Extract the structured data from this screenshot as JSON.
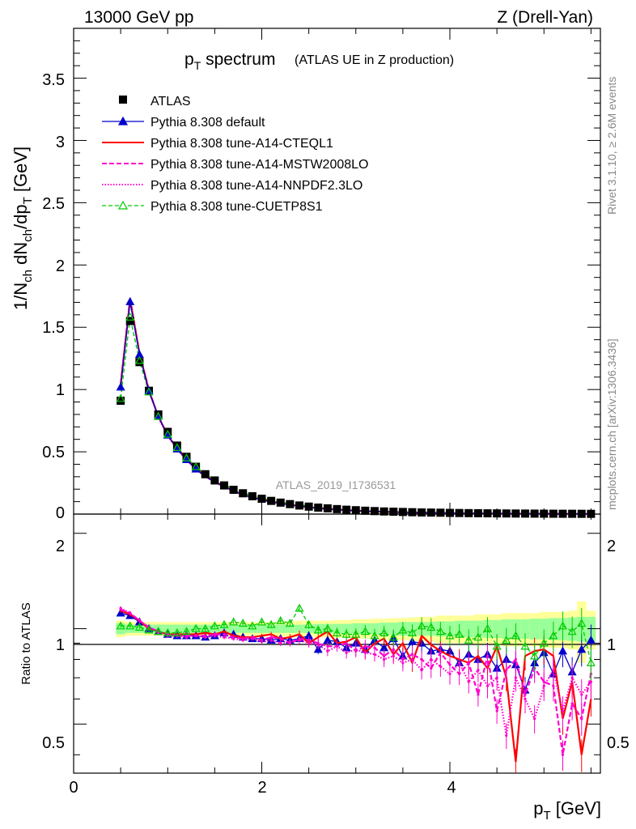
{
  "header": {
    "left": "13000 GeV pp",
    "right": "Z (Drell-Yan)"
  },
  "side": {
    "rivet": "Rivet 3.1.10, ≥ 2.6M events",
    "mcplots": "mcplots.cern.ch [arXiv:1306.3436]"
  },
  "chart_data": {
    "type": "line",
    "title": "p_T spectrum",
    "subtitle": "(ATLAS UE in Z production)",
    "analysis_label": "ATLAS_2019_I1736531",
    "xlabel": "p_T [GeV]",
    "ylabel": "1/N_ch dN_ch/dp_T [GeV]",
    "ratio_ylabel": "Ratio to ATLAS",
    "xlim": [
      0,
      5.6
    ],
    "ylim": [
      0,
      3.9
    ],
    "ratio_ylim": [
      0.35,
      2.3
    ],
    "x_ticks": [
      "0",
      "2",
      "4"
    ],
    "y_ticks": [
      "0",
      "0.5",
      "1",
      "1.5",
      "2",
      "2.5",
      "3",
      "3.5"
    ],
    "ratio_ticks": [
      "0.5",
      "1",
      "2"
    ],
    "legend_position": "top-left",
    "x": [
      0.5,
      0.6,
      0.7,
      0.8,
      0.9,
      1.0,
      1.1,
      1.2,
      1.3,
      1.4,
      1.5,
      1.6,
      1.7,
      1.8,
      1.9,
      2.0,
      2.1,
      2.2,
      2.3,
      2.4,
      2.5,
      2.6,
      2.7,
      2.8,
      2.9,
      3.0,
      3.1,
      3.2,
      3.3,
      3.4,
      3.5,
      3.6,
      3.7,
      3.8,
      3.9,
      4.0,
      4.1,
      4.2,
      4.3,
      4.4,
      4.5,
      4.6,
      4.7,
      4.8,
      4.9,
      5.0,
      5.1,
      5.2,
      5.3,
      5.4,
      5.5
    ],
    "data": {
      "name": "ATLAS",
      "values": [
        0.91,
        1.55,
        1.22,
        0.99,
        0.8,
        0.66,
        0.55,
        0.46,
        0.38,
        0.32,
        0.27,
        0.23,
        0.195,
        0.167,
        0.143,
        0.123,
        0.106,
        0.092,
        0.08,
        0.069,
        0.06,
        0.052,
        0.046,
        0.04,
        0.035,
        0.031,
        0.027,
        0.024,
        0.021,
        0.019,
        0.017,
        0.015,
        0.013,
        0.012,
        0.011,
        0.0095,
        0.0085,
        0.0076,
        0.0068,
        0.0061,
        0.0055,
        0.0049,
        0.0044,
        0.004,
        0.0036,
        0.0032,
        0.0029,
        0.0026,
        0.0024,
        0.0021,
        0.0019
      ],
      "band_inner": [
        0.04,
        0.03,
        0.03,
        0.03,
        0.03,
        0.03,
        0.03,
        0.03,
        0.03,
        0.03,
        0.03,
        0.03,
        0.03,
        0.03,
        0.03,
        0.03,
        0.03,
        0.03,
        0.03,
        0.03,
        0.03,
        0.035,
        0.035,
        0.035,
        0.035,
        0.04,
        0.04,
        0.04,
        0.045,
        0.045,
        0.05,
        0.05,
        0.05,
        0.05,
        0.055,
        0.055,
        0.06,
        0.06,
        0.06,
        0.065,
        0.065,
        0.07,
        0.07,
        0.07,
        0.075,
        0.075,
        0.08,
        0.08,
        0.085,
        0.09,
        0.09
      ],
      "band_outer": [
        0.06,
        0.05,
        0.05,
        0.05,
        0.05,
        0.05,
        0.05,
        0.05,
        0.05,
        0.05,
        0.05,
        0.05,
        0.05,
        0.05,
        0.05,
        0.05,
        0.05,
        0.055,
        0.055,
        0.06,
        0.06,
        0.06,
        0.06,
        0.065,
        0.065,
        0.07,
        0.07,
        0.075,
        0.075,
        0.08,
        0.08,
        0.085,
        0.09,
        0.09,
        0.1,
        0.1,
        0.1,
        0.1,
        0.11,
        0.11,
        0.11,
        0.12,
        0.12,
        0.12,
        0.12,
        0.13,
        0.13,
        0.13,
        0.14,
        0.22,
        0.14
      ]
    },
    "series": [
      {
        "name": "Pythia 8.308 default",
        "color": "#0000cc",
        "dash": "",
        "marker": "triangle-filled",
        "ratio": [
          1.12,
          1.1,
          1.05,
          1.0,
          0.98,
          0.96,
          0.95,
          0.95,
          0.95,
          0.94,
          0.95,
          0.97,
          0.96,
          0.94,
          0.93,
          0.93,
          0.92,
          0.93,
          0.92,
          0.93,
          0.95,
          0.86,
          0.92,
          0.91,
          0.87,
          0.9,
          0.86,
          0.92,
          0.87,
          0.93,
          0.82,
          0.91,
          0.9,
          0.85,
          0.86,
          0.85,
          0.78,
          0.83,
          0.8,
          0.83,
          0.75,
          0.8,
          0.77,
          0.64,
          0.78,
          0.84,
          0.72,
          0.85,
          0.73,
          0.86,
          0.92
        ]
      },
      {
        "name": "Pythia 8.308 tune-A14-CTEQL1",
        "color": "#ff0000",
        "dash": "",
        "marker": "none",
        "ratio": [
          1.14,
          1.11,
          1.06,
          1.0,
          0.98,
          0.96,
          0.96,
          0.96,
          0.96,
          0.97,
          0.96,
          0.98,
          0.95,
          0.94,
          0.94,
          0.95,
          0.96,
          0.93,
          0.94,
          0.96,
          0.9,
          0.94,
          0.98,
          0.9,
          0.91,
          0.94,
          0.84,
          0.9,
          0.93,
          0.83,
          0.9,
          0.78,
          0.95,
          0.89,
          0.85,
          0.82,
          0.8,
          0.78,
          0.82,
          0.75,
          0.88,
          0.7,
          0.38,
          0.82,
          0.85,
          0.86,
          0.82,
          0.52,
          0.68,
          0.4,
          0.6
        ]
      },
      {
        "name": "Pythia 8.308 tune-A14-MSTW2008LO",
        "color": "#ff00cc",
        "dash": "6,3",
        "marker": "none",
        "ratio": [
          1.15,
          1.12,
          1.06,
          1.01,
          0.98,
          0.96,
          0.95,
          0.95,
          0.95,
          0.95,
          0.96,
          0.96,
          0.94,
          0.93,
          0.94,
          0.92,
          0.94,
          0.93,
          0.9,
          0.93,
          0.92,
          0.9,
          0.88,
          0.88,
          0.9,
          0.85,
          0.88,
          0.87,
          0.82,
          0.86,
          0.8,
          0.83,
          0.8,
          0.75,
          0.84,
          0.77,
          0.72,
          0.78,
          0.62,
          0.82,
          0.55,
          0.74,
          0.8,
          0.62,
          0.75,
          0.68,
          0.66,
          0.4,
          0.58,
          0.52,
          0.72
        ]
      },
      {
        "name": "Pythia 8.308 tune-A14-NNPDF2.3LO",
        "color": "#ff00cc",
        "dash": "1.5,2",
        "marker": "none",
        "ratio": [
          1.16,
          1.12,
          1.06,
          1.01,
          0.97,
          0.95,
          0.95,
          0.94,
          0.95,
          0.94,
          0.95,
          0.94,
          0.93,
          0.92,
          0.93,
          0.91,
          0.92,
          0.9,
          0.91,
          0.92,
          0.9,
          0.89,
          0.85,
          0.88,
          0.84,
          0.86,
          0.84,
          0.83,
          0.8,
          0.82,
          0.78,
          0.8,
          0.74,
          0.8,
          0.76,
          0.72,
          0.78,
          0.68,
          0.74,
          0.66,
          0.7,
          0.46,
          0.7,
          0.6,
          0.52,
          0.66,
          0.74,
          0.55,
          0.7,
          0.62,
          0.68
        ]
      },
      {
        "name": "Pythia 8.308 tune-CUETP8S1",
        "color": "#00cc00",
        "dash": "5,3",
        "marker": "triangle-open",
        "ratio": [
          1.02,
          1.02,
          1.01,
          0.99,
          0.98,
          0.97,
          0.97,
          0.98,
          1.0,
          1.0,
          1.02,
          1.03,
          1.05,
          1.04,
          1.02,
          1.05,
          1.03,
          1.06,
          1.04,
          1.16,
          1.03,
          0.99,
          1.0,
          0.97,
          0.96,
          0.96,
          0.98,
          0.95,
          0.97,
          0.94,
          0.99,
          0.97,
          1.02,
          1.01,
          0.98,
          0.95,
          0.96,
          0.92,
          0.94,
          1.0,
          0.88,
          0.92,
          0.95,
          0.88,
          0.82,
          0.9,
          0.95,
          1.02,
          0.98,
          1.04,
          0.78
        ]
      }
    ]
  }
}
